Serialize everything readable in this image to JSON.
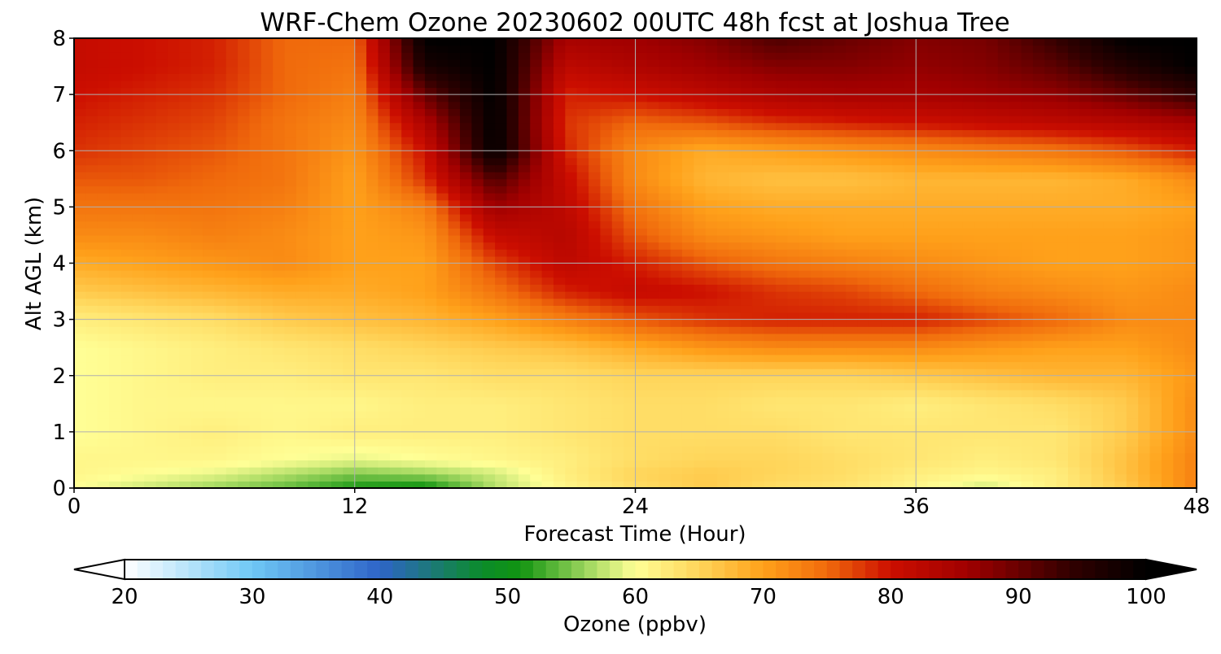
{
  "chart_data": {
    "type": "heatmap",
    "title": "WRF-Chem Ozone  20230602 00UTC 48h fcst at Joshua Tree",
    "xlabel": "Forecast Time (Hour)",
    "ylabel": "Alt AGL (km)",
    "xlim": [
      0,
      48
    ],
    "ylim": [
      0,
      8
    ],
    "xticks": [
      0,
      12,
      24,
      36,
      48
    ],
    "yticks": [
      0,
      1,
      2,
      3,
      4,
      5,
      6,
      7,
      8
    ],
    "grid": true,
    "x_hours": [
      0,
      3,
      6,
      9,
      12,
      15,
      18,
      21,
      24,
      27,
      30,
      33,
      36,
      39,
      42,
      45,
      48
    ],
    "y_km": [
      0,
      0.25,
      0.5,
      1,
      1.5,
      2,
      2.5,
      3,
      3.5,
      4,
      4.5,
      5,
      5.5,
      6,
      6.5,
      7,
      7.5,
      8
    ],
    "z_ppbv": [
      [
        60,
        58,
        56,
        54,
        51,
        50,
        57,
        61,
        64,
        66,
        64,
        63,
        61,
        58,
        62,
        66,
        73
      ],
      [
        61,
        60,
        59,
        57,
        55,
        56,
        58,
        62,
        65,
        66,
        65,
        64,
        62,
        61,
        62,
        67,
        73
      ],
      [
        61,
        61,
        61,
        60,
        59,
        60,
        61,
        62,
        64,
        65,
        65,
        64,
        63,
        62,
        63,
        67,
        73
      ],
      [
        60,
        61,
        62,
        61,
        62,
        62,
        62,
        63,
        64,
        64,
        64,
        63,
        63,
        63,
        63,
        66,
        72
      ],
      [
        60,
        61,
        61,
        61,
        61,
        62,
        62,
        63,
        64,
        64,
        63,
        63,
        62,
        63,
        64,
        66,
        72
      ],
      [
        60,
        61,
        62,
        62,
        63,
        63,
        64,
        64,
        65,
        65,
        65,
        65,
        66,
        67,
        68,
        68,
        71
      ],
      [
        60,
        61,
        62,
        63,
        64,
        65,
        66,
        67,
        69,
        71,
        72,
        72,
        72,
        71,
        70,
        70,
        72
      ],
      [
        62,
        63,
        64,
        66,
        67,
        68,
        70,
        73,
        76,
        78,
        79,
        79,
        79,
        77,
        75,
        72,
        72
      ],
      [
        66,
        67,
        68,
        69,
        69,
        70,
        74,
        79,
        81,
        80,
        78,
        77,
        75,
        73,
        72,
        71,
        72
      ],
      [
        69,
        70,
        71,
        72,
        70,
        70,
        77,
        82,
        79,
        76,
        74,
        73,
        72,
        71,
        70,
        70,
        71
      ],
      [
        72,
        72,
        73,
        72,
        70,
        71,
        81,
        83,
        76,
        72,
        71,
        70,
        70,
        70,
        70,
        70,
        71
      ],
      [
        74,
        74,
        74,
        73,
        70,
        73,
        86,
        82,
        74,
        70,
        69,
        69,
        69,
        69,
        69,
        69,
        70
      ],
      [
        76,
        76,
        75,
        74,
        70,
        78,
        92,
        81,
        72,
        68,
        67,
        67,
        68,
        68,
        68,
        69,
        72
      ],
      [
        78,
        77,
        76,
        74,
        71,
        80,
        100,
        79,
        72,
        69,
        70,
        71,
        72,
        73,
        74,
        76,
        79
      ],
      [
        79,
        78,
        77,
        74,
        72,
        84,
        100,
        78,
        75,
        76,
        78,
        79,
        80,
        81,
        82,
        83,
        85
      ],
      [
        80,
        79,
        78,
        75,
        73,
        90,
        100,
        79,
        80,
        82,
        84,
        85,
        85,
        86,
        87,
        90,
        94
      ],
      [
        81,
        80,
        79,
        75,
        74,
        97,
        100,
        82,
        84,
        86,
        88,
        88,
        87,
        88,
        91,
        96,
        100
      ],
      [
        81,
        80,
        79,
        75,
        75,
        100,
        100,
        85,
        86,
        88,
        92,
        90,
        88,
        89,
        94,
        100,
        100
      ]
    ],
    "colorbar": {
      "label": "Ozone  (ppbv)",
      "min": 20,
      "max": 100,
      "ticks": [
        20,
        30,
        40,
        50,
        60,
        70,
        80,
        90,
        100
      ],
      "extend": "both",
      "stops": [
        {
          "v": 20,
          "color": "#ffffff"
        },
        {
          "v": 30,
          "color": "#6fc8f5"
        },
        {
          "v": 40,
          "color": "#2e64c8"
        },
        {
          "v": 48,
          "color": "#0b8c2a"
        },
        {
          "v": 51,
          "color": "#119411"
        },
        {
          "v": 57,
          "color": "#b4e06a"
        },
        {
          "v": 60,
          "color": "#ffff96"
        },
        {
          "v": 65,
          "color": "#ffd55a"
        },
        {
          "v": 70,
          "color": "#ffa11a"
        },
        {
          "v": 75,
          "color": "#f06a0c"
        },
        {
          "v": 80,
          "color": "#cc0e00"
        },
        {
          "v": 86,
          "color": "#a00000"
        },
        {
          "v": 94,
          "color": "#320000"
        },
        {
          "v": 100,
          "color": "#000000"
        }
      ]
    }
  }
}
